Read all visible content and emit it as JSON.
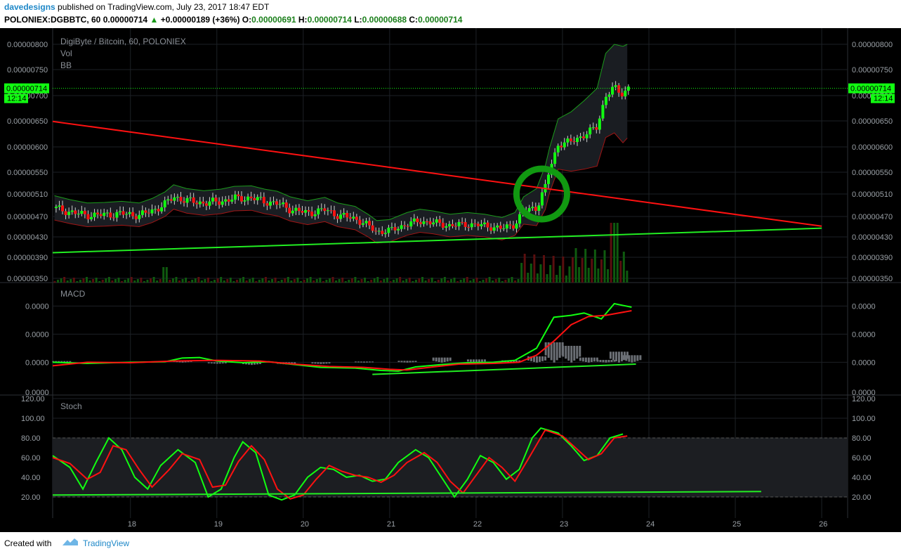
{
  "header": {
    "author": "davedesigns",
    "published_text": "published on TradingView.com, July 23, 2017 18:47 EDT",
    "symbol": "POLONIEX:DGBBTC, 60",
    "last": "0.00000714",
    "change": "+0.00000189 (+36%)",
    "o_label": "O:",
    "o": "0.00000691",
    "h_label": "H:",
    "h": "0.00000714",
    "l_label": "L:",
    "l": "0.00000688",
    "c_label": "C:",
    "c": "0.00000714"
  },
  "footer": {
    "created_with": "Created with",
    "brand": "TradingView"
  },
  "colors": {
    "up": "#11ff11",
    "down": "#ff1111",
    "bg": "#000000",
    "trend": "#ff1111",
    "support": "#22ee22"
  },
  "chart_data": [
    {
      "type": "candlestick",
      "title": "DigiByte / Bitcoin, 60, POLONIEX",
      "indicators": [
        "Vol",
        "BB"
      ],
      "x_ticks": [
        "18",
        "19",
        "20",
        "21",
        "22",
        "23",
        "24",
        "25",
        "26"
      ],
      "x_range": [
        17.1,
        26.3
      ],
      "y_ticks": [
        "0.00000800",
        "0.00000750",
        "0.00000700",
        "0.00000650",
        "0.00000600",
        "0.00000550",
        "0.00000510",
        "0.00000470",
        "0.00000430",
        "0.00000390",
        "0.00000350"
      ],
      "current_price_label": "0.00000714",
      "countdown_label": "12:14",
      "price_path": [
        [
          17.12,
          4.85
        ],
        [
          17.3,
          4.78
        ],
        [
          17.5,
          4.72
        ],
        [
          17.7,
          4.73
        ],
        [
          17.9,
          4.75
        ],
        [
          18.1,
          4.72
        ],
        [
          18.25,
          4.8
        ],
        [
          18.4,
          4.92
        ],
        [
          18.5,
          5.05
        ],
        [
          18.65,
          4.98
        ],
        [
          18.85,
          4.94
        ],
        [
          19.05,
          4.97
        ],
        [
          19.2,
          5.02
        ],
        [
          19.4,
          5.03
        ],
        [
          19.55,
          4.97
        ],
        [
          19.7,
          4.93
        ],
        [
          19.85,
          4.83
        ],
        [
          20.05,
          4.76
        ],
        [
          20.25,
          4.82
        ],
        [
          20.4,
          4.72
        ],
        [
          20.6,
          4.66
        ],
        [
          20.75,
          4.52
        ],
        [
          20.85,
          4.4
        ],
        [
          21.0,
          4.42
        ],
        [
          21.2,
          4.55
        ],
        [
          21.35,
          4.61
        ],
        [
          21.5,
          4.58
        ],
        [
          21.7,
          4.52
        ],
        [
          21.9,
          4.55
        ],
        [
          22.1,
          4.52
        ],
        [
          22.3,
          4.46
        ],
        [
          22.45,
          4.55
        ],
        [
          22.55,
          4.8
        ],
        [
          22.7,
          4.86
        ],
        [
          22.8,
          5.22
        ],
        [
          22.85,
          5.55
        ],
        [
          22.95,
          6.05
        ],
        [
          23.1,
          6.1
        ],
        [
          23.25,
          6.23
        ],
        [
          23.4,
          6.38
        ],
        [
          23.5,
          7.0
        ],
        [
          23.6,
          7.15
        ],
        [
          23.7,
          7.02
        ],
        [
          23.75,
          7.14
        ]
      ],
      "trendlines": [
        {
          "label": "resistance",
          "from": [
            17.1,
            6.49
          ],
          "to": [
            26.0,
            4.51
          ]
        },
        {
          "label": "support",
          "from": [
            17.1,
            3.99
          ],
          "to": [
            26.0,
            4.47
          ]
        }
      ]
    },
    {
      "type": "line",
      "title": "MACD",
      "y_ticks": [
        "0.0000",
        "0.0000",
        "0.0000",
        "0.0000"
      ],
      "series": [
        {
          "values": [
            [
              17.1,
              0
            ],
            [
              17.5,
              -0.05
            ],
            [
              18.0,
              0
            ],
            [
              18.4,
              0.02
            ],
            [
              18.6,
              0.18
            ],
            [
              18.8,
              0.2
            ],
            [
              19.0,
              0.05
            ],
            [
              19.3,
              -0.02
            ],
            [
              19.6,
              0.02
            ],
            [
              19.9,
              -0.1
            ],
            [
              20.2,
              -0.22
            ],
            [
              20.6,
              -0.25
            ],
            [
              20.9,
              -0.35
            ],
            [
              21.1,
              -0.38
            ],
            [
              21.3,
              -0.2
            ],
            [
              21.6,
              -0.1
            ],
            [
              21.9,
              -0.02
            ],
            [
              22.2,
              0
            ],
            [
              22.45,
              0.08
            ],
            [
              22.7,
              0.6
            ],
            [
              22.9,
              1.92
            ],
            [
              23.1,
              2.0
            ],
            [
              23.25,
              2.1
            ],
            [
              23.45,
              1.85
            ],
            [
              23.6,
              2.5
            ],
            [
              23.8,
              2.35
            ]
          ]
        },
        {
          "values": [
            [
              17.1,
              -0.15
            ],
            [
              17.5,
              0
            ],
            [
              18.0,
              -0.02
            ],
            [
              18.5,
              0.05
            ],
            [
              19.0,
              0.08
            ],
            [
              19.5,
              0.05
            ],
            [
              19.9,
              -0.08
            ],
            [
              20.3,
              -0.18
            ],
            [
              20.7,
              -0.22
            ],
            [
              21.0,
              -0.3
            ],
            [
              21.2,
              -0.33
            ],
            [
              21.5,
              -0.2
            ],
            [
              21.8,
              -0.08
            ],
            [
              22.2,
              -0.05
            ],
            [
              22.5,
              0
            ],
            [
              22.7,
              0.3
            ],
            [
              22.9,
              0.9
            ],
            [
              23.1,
              1.6
            ],
            [
              23.3,
              1.95
            ],
            [
              23.5,
              2.0
            ],
            [
              23.8,
              2.2
            ]
          ]
        }
      ],
      "histogram": [
        [
          17.2,
          0.05
        ],
        [
          17.6,
          -0.03
        ],
        [
          18.2,
          0.02
        ],
        [
          18.6,
          0.08
        ],
        [
          19.0,
          -0.05
        ],
        [
          19.4,
          -0.1
        ],
        [
          19.8,
          -0.08
        ],
        [
          20.2,
          -0.06
        ],
        [
          20.7,
          0.03
        ],
        [
          21.2,
          0.06
        ],
        [
          21.6,
          0.2
        ],
        [
          22.0,
          0.12
        ],
        [
          22.4,
          0.08
        ],
        [
          22.7,
          0.25
        ],
        [
          22.9,
          0.85
        ],
        [
          23.1,
          0.7
        ],
        [
          23.3,
          0.2
        ],
        [
          23.5,
          0.1
        ],
        [
          23.65,
          0.45
        ],
        [
          23.8,
          0.3
        ]
      ]
    },
    {
      "type": "line",
      "title": "Stoch",
      "y_ticks": [
        "120.00",
        "100.00",
        "80.00",
        "60.00",
        "40.00",
        "20.00"
      ],
      "band": [
        20,
        80
      ],
      "series": [
        {
          "values": [
            [
              17.1,
              62
            ],
            [
              17.3,
              50
            ],
            [
              17.45,
              28
            ],
            [
              17.6,
              55
            ],
            [
              17.75,
              80
            ],
            [
              17.9,
              68
            ],
            [
              18.05,
              40
            ],
            [
              18.2,
              28
            ],
            [
              18.35,
              52
            ],
            [
              18.55,
              68
            ],
            [
              18.75,
              55
            ],
            [
              18.9,
              20
            ],
            [
              19.05,
              28
            ],
            [
              19.2,
              60
            ],
            [
              19.3,
              76
            ],
            [
              19.45,
              65
            ],
            [
              19.6,
              22
            ],
            [
              19.75,
              17
            ],
            [
              19.9,
              22
            ],
            [
              20.05,
              40
            ],
            [
              20.2,
              50
            ],
            [
              20.35,
              48
            ],
            [
              20.5,
              40
            ],
            [
              20.65,
              42
            ],
            [
              20.8,
              36
            ],
            [
              20.95,
              38
            ],
            [
              21.1,
              55
            ],
            [
              21.3,
              68
            ],
            [
              21.45,
              60
            ],
            [
              21.6,
              40
            ],
            [
              21.75,
              20
            ],
            [
              21.9,
              38
            ],
            [
              22.05,
              62
            ],
            [
              22.2,
              55
            ],
            [
              22.35,
              38
            ],
            [
              22.5,
              48
            ],
            [
              22.65,
              80
            ],
            [
              22.75,
              90
            ],
            [
              22.95,
              85
            ],
            [
              23.1,
              72
            ],
            [
              23.25,
              57
            ],
            [
              23.4,
              62
            ],
            [
              23.55,
              80
            ],
            [
              23.7,
              84
            ]
          ]
        },
        {
          "values": [
            [
              17.1,
              60
            ],
            [
              17.3,
              54
            ],
            [
              17.5,
              38
            ],
            [
              17.65,
              45
            ],
            [
              17.8,
              72
            ],
            [
              17.95,
              68
            ],
            [
              18.1,
              48
            ],
            [
              18.25,
              30
            ],
            [
              18.45,
              48
            ],
            [
              18.6,
              64
            ],
            [
              18.8,
              58
            ],
            [
              18.95,
              30
            ],
            [
              19.1,
              32
            ],
            [
              19.25,
              56
            ],
            [
              19.4,
              72
            ],
            [
              19.55,
              58
            ],
            [
              19.7,
              28
            ],
            [
              19.85,
              18
            ],
            [
              20.0,
              22
            ],
            [
              20.15,
              38
            ],
            [
              20.3,
              52
            ],
            [
              20.45,
              46
            ],
            [
              20.6,
              42
            ],
            [
              20.75,
              40
            ],
            [
              20.9,
              35
            ],
            [
              21.05,
              42
            ],
            [
              21.2,
              55
            ],
            [
              21.4,
              65
            ],
            [
              21.55,
              55
            ],
            [
              21.7,
              36
            ],
            [
              21.85,
              24
            ],
            [
              22.0,
              42
            ],
            [
              22.15,
              60
            ],
            [
              22.3,
              50
            ],
            [
              22.45,
              36
            ],
            [
              22.6,
              58
            ],
            [
              22.8,
              88
            ],
            [
              23.0,
              82
            ],
            [
              23.15,
              70
            ],
            [
              23.3,
              58
            ],
            [
              23.45,
              64
            ],
            [
              23.6,
              80
            ],
            [
              23.75,
              82
            ]
          ]
        }
      ],
      "trendlines": [
        {
          "label": "support",
          "from": [
            17.1,
            22
          ],
          "to": [
            25.3,
            25.5
          ]
        }
      ]
    }
  ]
}
